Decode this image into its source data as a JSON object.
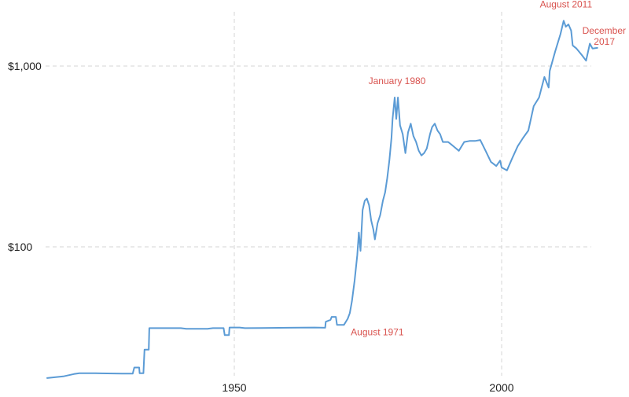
{
  "chart_data": {
    "type": "line",
    "title": "",
    "xlabel": "",
    "ylabel": "",
    "y_scale": "log",
    "xlim": [
      1915,
      2018
    ],
    "ylim": [
      18,
      1900
    ],
    "grid": true,
    "x_ticks": [
      {
        "value": 1950,
        "label": "1950"
      },
      {
        "value": 2000,
        "label": "2000"
      }
    ],
    "y_ticks": [
      {
        "value": 100,
        "label": "$100"
      },
      {
        "value": 1000,
        "label": "$1,000"
      }
    ],
    "series": [
      {
        "color": "#5b9bd5",
        "points": [
          [
            1915,
            18.8
          ],
          [
            1918,
            19.2
          ],
          [
            1920,
            19.8
          ],
          [
            1921,
            20.0
          ],
          [
            1924,
            20.0
          ],
          [
            1929,
            19.9
          ],
          [
            1931,
            19.9
          ],
          [
            1931.3,
            21.5
          ],
          [
            1932.2,
            21.5
          ],
          [
            1932.3,
            20.0
          ],
          [
            1933,
            20.0
          ],
          [
            1933.2,
            27.0
          ],
          [
            1934,
            27.0
          ],
          [
            1934.1,
            35.5
          ],
          [
            1940,
            35.5
          ],
          [
            1941,
            35.2
          ],
          [
            1945,
            35.2
          ],
          [
            1946,
            35.5
          ],
          [
            1948,
            35.5
          ],
          [
            1948.2,
            32.5
          ],
          [
            1949,
            32.5
          ],
          [
            1949.1,
            35.8
          ],
          [
            1951,
            35.8
          ],
          [
            1952,
            35.5
          ],
          [
            1955,
            35.6
          ],
          [
            1960,
            35.7
          ],
          [
            1965,
            35.8
          ],
          [
            1967,
            35.7
          ],
          [
            1967.1,
            38.5
          ],
          [
            1968,
            39.5
          ],
          [
            1968.2,
            41.0
          ],
          [
            1969,
            41.0
          ],
          [
            1969.2,
            37.0
          ],
          [
            1970.5,
            37.0
          ],
          [
            1971.2,
            40.0
          ],
          [
            1971.6,
            43.0
          ],
          [
            1972,
            50.0
          ],
          [
            1972.5,
            65.0
          ],
          [
            1973,
            90.0
          ],
          [
            1973.3,
            120.0
          ],
          [
            1973.6,
            95.0
          ],
          [
            1974,
            160.0
          ],
          [
            1974.4,
            180.0
          ],
          [
            1974.8,
            185.0
          ],
          [
            1975.2,
            170.0
          ],
          [
            1975.6,
            140.0
          ],
          [
            1976,
            125.0
          ],
          [
            1976.3,
            110.0
          ],
          [
            1976.8,
            135.0
          ],
          [
            1977.3,
            150.0
          ],
          [
            1977.8,
            180.0
          ],
          [
            1978.2,
            200.0
          ],
          [
            1978.6,
            240.0
          ],
          [
            1979,
            300.0
          ],
          [
            1979.4,
            400.0
          ],
          [
            1979.6,
            510.0
          ],
          [
            1980.0,
            670.0
          ],
          [
            1980.3,
            510.0
          ],
          [
            1980.6,
            670.0
          ],
          [
            1981,
            470.0
          ],
          [
            1981.5,
            420.0
          ],
          [
            1982,
            330.0
          ],
          [
            1982.5,
            430.0
          ],
          [
            1983,
            480.0
          ],
          [
            1983.5,
            410.0
          ],
          [
            1984,
            380.0
          ],
          [
            1984.5,
            340.0
          ],
          [
            1985,
            320.0
          ],
          [
            1985.5,
            330.0
          ],
          [
            1986,
            350.0
          ],
          [
            1986.6,
            420.0
          ],
          [
            1987,
            460.0
          ],
          [
            1987.5,
            480.0
          ],
          [
            1988,
            440.0
          ],
          [
            1988.5,
            420.0
          ],
          [
            1989,
            380.0
          ],
          [
            1990,
            380.0
          ],
          [
            1990.5,
            370.0
          ],
          [
            1991,
            360.0
          ],
          [
            1992,
            340.0
          ],
          [
            1993,
            380.0
          ],
          [
            1994,
            385.0
          ],
          [
            1995,
            385.0
          ],
          [
            1996,
            390.0
          ],
          [
            1997,
            340.0
          ],
          [
            1998,
            295.0
          ],
          [
            1999,
            280.0
          ],
          [
            1999.7,
            300.0
          ],
          [
            2000,
            275.0
          ],
          [
            2001,
            265.0
          ],
          [
            2002,
            310.0
          ],
          [
            2003,
            360.0
          ],
          [
            2004,
            400.0
          ],
          [
            2005,
            440.0
          ],
          [
            2006,
            600.0
          ],
          [
            2007,
            670.0
          ],
          [
            2008,
            870.0
          ],
          [
            2008.8,
            760.0
          ],
          [
            2009,
            940.0
          ],
          [
            2010,
            1200.0
          ],
          [
            2011.0,
            1500.0
          ],
          [
            2011.6,
            1780.0
          ],
          [
            2012,
            1650.0
          ],
          [
            2012.5,
            1700.0
          ],
          [
            2013.0,
            1570.0
          ],
          [
            2013.3,
            1300.0
          ],
          [
            2014,
            1250.0
          ],
          [
            2015,
            1150.0
          ],
          [
            2015.8,
            1070.0
          ],
          [
            2016.5,
            1330.0
          ],
          [
            2017,
            1250.0
          ],
          [
            2017.9,
            1260.0
          ]
        ]
      }
    ],
    "annotations": [
      {
        "text": "August 1971",
        "x": 1971.6,
        "y": 43.0,
        "position": "below"
      },
      {
        "text": "January 1980",
        "x": 1980.0,
        "y": 670.0,
        "position": "above"
      },
      {
        "text": "August 2011",
        "x": 2011.6,
        "y": 1780.0,
        "position": "above"
      },
      {
        "text": "December 2017",
        "x": 2017.9,
        "y": 1260.0,
        "position": "right"
      }
    ]
  }
}
